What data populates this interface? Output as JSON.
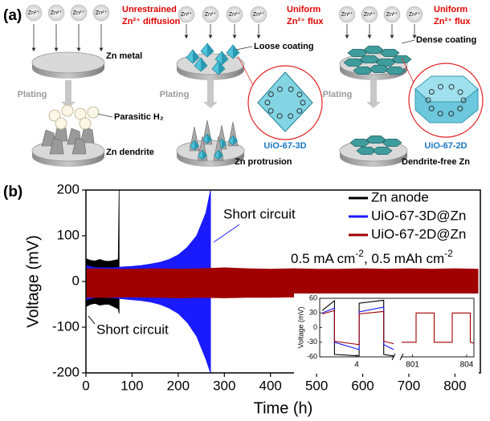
{
  "panel_a": {
    "label": "(a)",
    "ion": "Zn²⁺",
    "plating": "Plating",
    "columns": [
      {
        "heading": [
          "Unrestrained",
          "Zn²⁺ diffusion"
        ],
        "top_label": "Zn metal",
        "side_label": "Parasitic H₂",
        "bottom_label": "Zn dendrite"
      },
      {
        "heading": [
          "Uniform",
          "Zn²⁺ flux"
        ],
        "top_label": "Loose coating",
        "inset_label": "UiO-67-3D",
        "bottom_label": "Zn protrusion"
      },
      {
        "heading": [
          "Uniform",
          "Zn²⁺ flux"
        ],
        "top_label": "Dense coating",
        "inset_label": "UiO-67-2D",
        "bottom_label": "Dendrite-free Zn"
      }
    ]
  },
  "panel_b": {
    "label": "(b)"
  },
  "chart_data": [
    {
      "type": "band",
      "xlabel": "Time (h)",
      "ylabel": "Voltage (mV)",
      "xlim": [
        0,
        855
      ],
      "ylim": [
        -200,
        200
      ],
      "xticks": [
        0,
        100,
        200,
        300,
        400,
        500,
        600,
        700,
        800
      ],
      "yticks": [
        -200,
        -100,
        0,
        100,
        200
      ],
      "legend": "upper right",
      "annotations": {
        "short_circuit": "Short circuit",
        "conditions": [
          "0.5 mA cm",
          "-2",
          ", 0.5 mAh cm",
          "-2"
        ]
      },
      "series": [
        {
          "name": "Zn anode",
          "color": "#000000",
          "x": [
            0,
            10,
            20,
            30,
            40,
            50,
            60,
            70,
            72
          ],
          "values": [
            50,
            46,
            45,
            48,
            45,
            44,
            46,
            48,
            200
          ],
          "lower": [
            -55,
            -50,
            -48,
            -52,
            -50,
            -50,
            -55,
            -60,
            -70
          ]
        },
        {
          "name": "UiO-67-3D@Zn",
          "color": "#1a1aff",
          "x": [
            0,
            20,
            40,
            60,
            80,
            100,
            120,
            140,
            160,
            180,
            200,
            220,
            240,
            260,
            270
          ],
          "values": [
            35,
            30,
            30,
            30,
            32,
            33,
            35,
            38,
            42,
            48,
            58,
            75,
            100,
            150,
            200
          ],
          "lower": [
            -40,
            -35,
            -35,
            -36,
            -38,
            -40,
            -42,
            -45,
            -50,
            -58,
            -70,
            -90,
            -120,
            -170,
            -200
          ]
        },
        {
          "name": "UiO-67-2D@Zn",
          "color": "#a00000",
          "x": [
            0,
            50,
            100,
            150,
            200,
            250,
            300,
            350,
            400,
            450,
            500,
            550,
            600,
            650,
            700,
            750,
            800,
            850
          ],
          "values": [
            28,
            27,
            27,
            28,
            27,
            28,
            30,
            28,
            27,
            28,
            27,
            27,
            28,
            27,
            28,
            27,
            28,
            27
          ],
          "lower": [
            -35,
            -35,
            -34,
            -35,
            -36,
            -35,
            -36,
            -35,
            -35,
            -34,
            -35,
            -35,
            -36,
            -35,
            -35,
            -34,
            -35,
            -35
          ]
        }
      ]
    },
    {
      "type": "line",
      "ylabel": "Voltage (mV)",
      "ylim": [
        -60,
        60
      ],
      "yticks": [
        -60,
        -30,
        0,
        30,
        60
      ],
      "x_segments": [
        [
          2.5,
          5.5
        ],
        [
          800.4,
          804.4
        ]
      ],
      "xticks": [
        4,
        801,
        804
      ],
      "series": [
        {
          "color": "#000000",
          "x": [
            2.6,
            3.1,
            3.1,
            4.1,
            4.1,
            5.1,
            5.1,
            5.5
          ],
          "values": [
            35,
            55,
            -55,
            -58,
            50,
            56,
            -55,
            -58
          ]
        },
        {
          "color": "#1a1aff",
          "x": [
            2.6,
            3.1,
            3.1,
            4.1,
            4.1,
            5.1,
            5.1,
            5.5
          ],
          "values": [
            30,
            40,
            -30,
            -45,
            32,
            42,
            -35,
            -45
          ]
        },
        {
          "color": "#a00000",
          "x": [
            2.6,
            3.1,
            3.1,
            4.1,
            4.1,
            5.1,
            5.1,
            5.5
          ],
          "values": [
            28,
            35,
            -28,
            -35,
            28,
            33,
            -28,
            -33
          ]
        },
        {
          "color": "#a00000",
          "x": [
            800.4,
            801.2,
            801.2,
            802.2,
            802.2,
            803.2,
            803.2,
            804.2,
            804.2,
            804.4
          ],
          "values": [
            -30,
            -30,
            30,
            30,
            -30,
            -30,
            30,
            30,
            -30,
            -32
          ]
        }
      ]
    }
  ]
}
